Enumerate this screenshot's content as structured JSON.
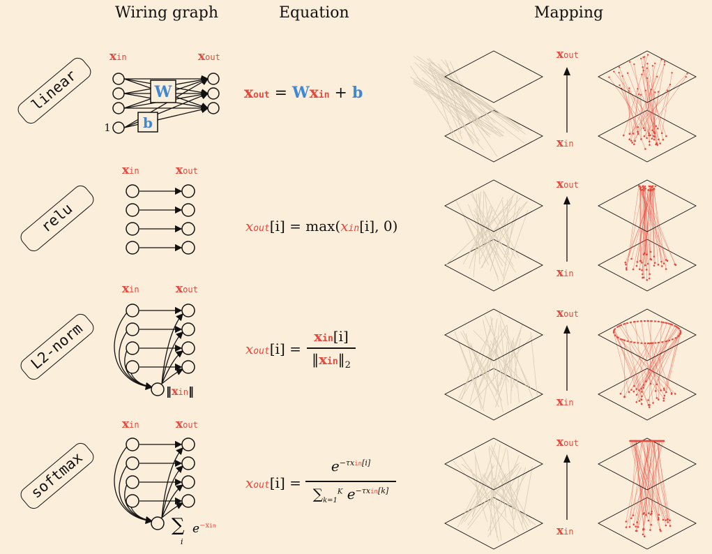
{
  "headers": {
    "wiring": "Wiring graph",
    "equation": "Equation",
    "mapping": "Mapping"
  },
  "rows": [
    {
      "tag": "linear",
      "wire_in": "x",
      "wire_in_sub": "in",
      "wire_out": "x",
      "wire_out_sub": "out",
      "weight": "W",
      "bias": "b",
      "bias_input": "1",
      "map_out": "x",
      "map_out_sub": "out",
      "map_in": "x",
      "map_in_sub": "in",
      "equation": {
        "lhs": "x",
        "lhs_sub": "out",
        "eq": "=",
        "w": "W",
        "x": "x",
        "x_sub": "in",
        "plus": "+",
        "b": "b"
      }
    },
    {
      "tag": "relu",
      "wire_in": "x",
      "wire_in_sub": "in",
      "wire_out": "x",
      "wire_out_sub": "out",
      "map_out": "x",
      "map_out_sub": "out",
      "map_in": "x",
      "map_in_sub": "in",
      "equation": {
        "lhs": "x",
        "lhs_sub": "out",
        "idx": "[i]",
        "eq": "=",
        "fn": "max(",
        "arg": "x",
        "arg_sub": "in",
        "arg_idx": "[i], 0)"
      }
    },
    {
      "tag": "L2-norm",
      "wire_in": "x",
      "wire_in_sub": "in",
      "wire_out": "x",
      "wire_out_sub": "out",
      "norm_open": "‖",
      "norm_x": "x",
      "norm_sub": "in",
      "norm_close": "‖",
      "map_out": "x",
      "map_out_sub": "out",
      "map_in": "x",
      "map_in_sub": "in",
      "equation": {
        "lhs": "x",
        "lhs_sub": "out",
        "idx": "[i]",
        "eq": "=",
        "num": "x",
        "num_sub": "in",
        "num_idx": "[i]",
        "den_open": "‖",
        "den": "x",
        "den_sub": "in",
        "den_close": "‖",
        "den_p": "2"
      }
    },
    {
      "tag": "softmax",
      "wire_in": "x",
      "wire_in_sub": "in",
      "wire_out": "x",
      "wire_out_sub": "out",
      "sum_sym": "∑",
      "sum_idx": "i",
      "sum_e": "e",
      "sum_exp": "−x",
      "sum_exp_sub": "in",
      "map_out": "x",
      "map_out_sub": "out",
      "map_in": "x",
      "map_in_sub": "in",
      "equation": {
        "lhs": "x",
        "lhs_sub": "out",
        "idx": "[i]",
        "eq": "=",
        "num_e": "e",
        "num_exp": "−τx",
        "num_exp_sub": "in",
        "num_exp_idx": "[i]",
        "den_sum": "∑",
        "den_from": "k=1",
        "den_to": "K",
        "den_e": "e",
        "den_exp": "−τx",
        "den_exp_sub": "in",
        "den_exp_idx": "[k]"
      }
    }
  ],
  "colors": {
    "background": "#fbeeda",
    "accent_red": "#e8473c",
    "accent_blue": "#3f88d6",
    "ink": "#111111",
    "grid_line": "#d9ccb6"
  }
}
